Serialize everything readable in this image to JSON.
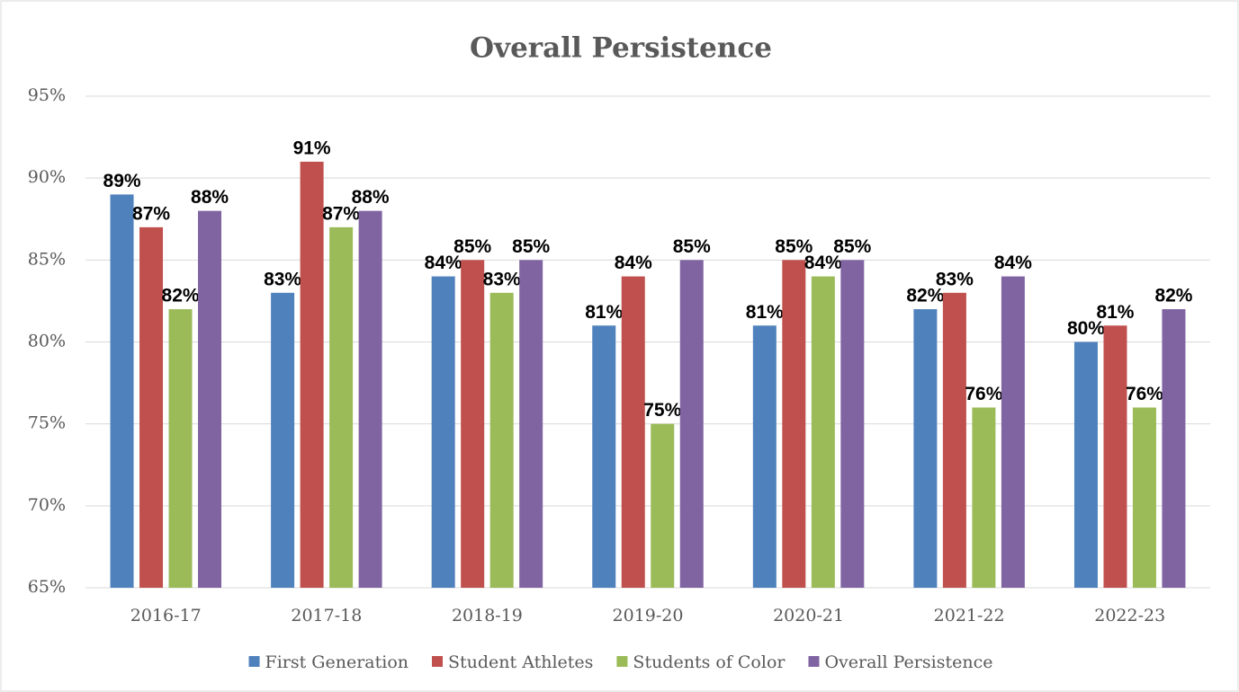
{
  "chart_data": {
    "type": "bar",
    "title": "Overall Persistence",
    "categories": [
      "2016-17",
      "2017-18",
      "2018-19",
      "2019-20",
      "2020-21",
      "2021-22",
      "2022-23"
    ],
    "series": [
      {
        "name": "First Generation",
        "color": "#4f81bd",
        "values": [
          89,
          83,
          84,
          81,
          81,
          82,
          80
        ],
        "value_labels": [
          "89%",
          "83%",
          "84%",
          "81%",
          "81%",
          "82%",
          "80%"
        ]
      },
      {
        "name": "Student Athletes",
        "color": "#c0504d",
        "values": [
          87,
          91,
          85,
          84,
          85,
          83,
          81
        ],
        "value_labels": [
          "87%",
          "91%",
          "85%",
          "84%",
          "85%",
          "83%",
          "81%"
        ]
      },
      {
        "name": "Students of Color",
        "color": "#9bbb59",
        "values": [
          82,
          87,
          83,
          75,
          84,
          76,
          76
        ],
        "value_labels": [
          "82%",
          "87%",
          "83%",
          "75%",
          "84%",
          "76%",
          "76%"
        ]
      },
      {
        "name": "Overall Persistence",
        "color": "#8064a2",
        "values": [
          88,
          88,
          85,
          85,
          85,
          84,
          82
        ],
        "value_labels": [
          "88%",
          "88%",
          "85%",
          "85%",
          "85%",
          "84%",
          "82%"
        ]
      }
    ],
    "ylim": [
      65,
      95
    ],
    "yticks": [
      {
        "value": 65,
        "label": "65%"
      },
      {
        "value": 70,
        "label": "70%"
      },
      {
        "value": 75,
        "label": "75%"
      },
      {
        "value": 80,
        "label": "80%"
      },
      {
        "value": 85,
        "label": "85%"
      },
      {
        "value": 90,
        "label": "90%"
      },
      {
        "value": 95,
        "label": "95%"
      }
    ],
    "grid": true,
    "legend": "bottom"
  }
}
